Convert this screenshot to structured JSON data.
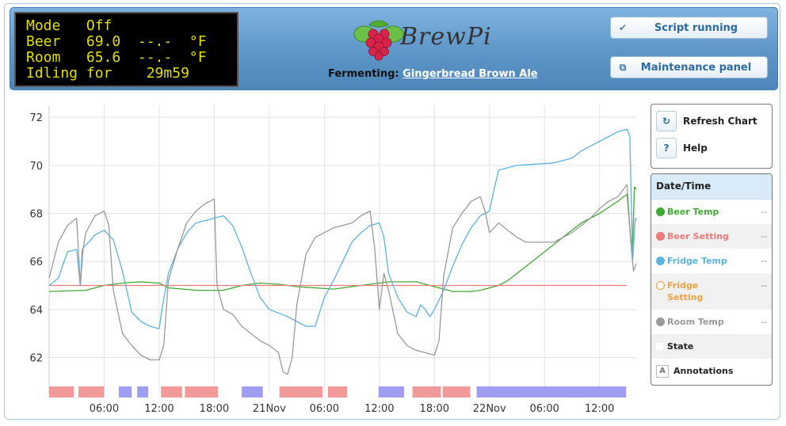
{
  "lcd": {
    "lines": [
      "Mode   Off",
      "Beer   69.0  --.-  °F",
      "Room   65.6  --.-  °F",
      "Idling for    29m59"
    ]
  },
  "brand": {
    "name": "BrewPi"
  },
  "fermenting": {
    "label": "Fermenting:",
    "beer_name": "Gingerbread Brown Ale"
  },
  "buttons": {
    "script": "Script running",
    "maintenance": "Maintenance panel"
  },
  "controls": {
    "refresh": "Refresh Chart",
    "help": "Help",
    "help_icon": "?"
  },
  "legend": {
    "header": "Date/Time",
    "items": [
      {
        "label": "Beer Temp",
        "value": "--",
        "color": "#41a833"
      },
      {
        "label": "Beer Setting",
        "value": "--",
        "color": "#f07a7a"
      },
      {
        "label": "Fridge Temp",
        "value": "--",
        "color": "#5cb3e0"
      },
      {
        "label": "Fridge Setting",
        "value": "--",
        "color": "#f0a040"
      },
      {
        "label": "Room Temp",
        "value": "--",
        "color": "#999999"
      },
      {
        "label": "State",
        "value": "",
        "color": "#ffffff"
      },
      {
        "label": "Annotations",
        "value": "",
        "color": "#ffffff"
      }
    ]
  },
  "chart_data": {
    "type": "line",
    "y_ticks": [
      "72",
      "70",
      "68",
      "66",
      "64",
      "62"
    ],
    "y_range": [
      60.5,
      72.5
    ],
    "x_ticks": [
      "06:00",
      "12:00",
      "18:00",
      "21Nov",
      "06:00",
      "12:00",
      "18:00",
      "22Nov",
      "06:00",
      "12:00"
    ],
    "x_range_hours": [
      0,
      64
    ],
    "grid": true,
    "series": [
      {
        "name": "Beer Temp",
        "color": "#41a833",
        "points": [
          [
            0,
            64.75
          ],
          [
            4,
            64.8
          ],
          [
            6,
            65.0
          ],
          [
            8,
            65.1
          ],
          [
            10,
            65.15
          ],
          [
            12,
            65.1
          ],
          [
            13,
            64.9
          ],
          [
            16,
            64.8
          ],
          [
            19,
            64.8
          ],
          [
            21,
            65.0
          ],
          [
            23,
            65.1
          ],
          [
            25,
            65.05
          ],
          [
            27,
            64.95
          ],
          [
            29,
            64.9
          ],
          [
            31,
            64.85
          ],
          [
            33,
            64.95
          ],
          [
            35,
            65.05
          ],
          [
            37,
            65.15
          ],
          [
            40,
            65.15
          ],
          [
            42,
            64.95
          ],
          [
            44,
            64.75
          ],
          [
            46,
            64.75
          ],
          [
            47,
            64.8
          ],
          [
            49,
            65.0
          ],
          [
            50,
            65.2
          ],
          [
            51,
            65.5
          ],
          [
            52,
            65.8
          ],
          [
            54,
            66.4
          ],
          [
            56,
            67.0
          ],
          [
            58,
            67.6
          ],
          [
            60,
            68.0
          ],
          [
            62,
            68.5
          ],
          [
            63,
            68.8
          ],
          [
            63.1,
            68.3
          ],
          [
            63.4,
            66.9
          ],
          [
            63.6,
            66.6
          ],
          [
            63.8,
            69.1
          ],
          [
            64,
            69.0
          ]
        ]
      },
      {
        "name": "Beer Setting",
        "color": "#f07a7a",
        "points": [
          [
            0,
            65.0
          ],
          [
            63,
            65.0
          ]
        ]
      },
      {
        "name": "Fridge Temp",
        "color": "#5cb3e0",
        "points": [
          [
            0,
            65.0
          ],
          [
            1,
            65.3
          ],
          [
            2,
            66.4
          ],
          [
            3,
            66.5
          ],
          [
            3.4,
            65.0
          ],
          [
            3.6,
            66.5
          ],
          [
            5,
            67.1
          ],
          [
            6,
            67.3
          ],
          [
            7,
            66.9
          ],
          [
            8,
            65.6
          ],
          [
            9,
            63.9
          ],
          [
            10,
            63.5
          ],
          [
            11,
            63.3
          ],
          [
            12,
            63.2
          ],
          [
            12.3,
            64.0
          ],
          [
            13,
            65.5
          ],
          [
            14,
            66.5
          ],
          [
            15,
            67.2
          ],
          [
            16,
            67.6
          ],
          [
            17,
            67.7
          ],
          [
            19,
            67.9
          ],
          [
            20,
            67.5
          ],
          [
            21,
            66.6
          ],
          [
            22,
            65.5
          ],
          [
            23,
            64.5
          ],
          [
            24,
            64.0
          ],
          [
            26,
            63.7
          ],
          [
            27,
            63.5
          ],
          [
            28,
            63.3
          ],
          [
            29,
            63.3
          ],
          [
            30,
            64.5
          ],
          [
            31,
            65.2
          ],
          [
            32,
            66.0
          ],
          [
            33,
            66.8
          ],
          [
            34,
            67.2
          ],
          [
            35,
            67.5
          ],
          [
            36,
            67.6
          ],
          [
            36.5,
            67.0
          ],
          [
            37,
            65.5
          ],
          [
            38,
            64.5
          ],
          [
            39,
            63.9
          ],
          [
            40,
            63.7
          ],
          [
            40.5,
            64.2
          ],
          [
            41,
            64.0
          ],
          [
            41.5,
            63.7
          ],
          [
            42,
            64.0
          ],
          [
            43,
            64.8
          ],
          [
            44,
            65.8
          ],
          [
            45,
            66.7
          ],
          [
            46,
            67.4
          ],
          [
            47,
            67.9
          ],
          [
            48,
            68.1
          ],
          [
            48.5,
            69.0
          ],
          [
            49,
            69.8
          ],
          [
            51,
            70.0
          ],
          [
            55,
            70.1
          ],
          [
            57,
            70.3
          ],
          [
            58,
            70.6
          ],
          [
            60,
            71.0
          ],
          [
            62,
            71.4
          ],
          [
            63,
            71.5
          ],
          [
            63.3,
            71.2
          ],
          [
            63.6,
            66.0
          ],
          [
            63.9,
            67.8
          ],
          [
            64,
            67.7
          ]
        ]
      },
      {
        "name": "Room Temp",
        "color": "#999999",
        "points": [
          [
            0,
            65.3
          ],
          [
            1,
            66.8
          ],
          [
            2,
            67.5
          ],
          [
            3,
            67.8
          ],
          [
            3.4,
            65.0
          ],
          [
            3.7,
            66.5
          ],
          [
            4,
            67.2
          ],
          [
            5,
            67.9
          ],
          [
            6,
            68.1
          ],
          [
            6.5,
            67.5
          ],
          [
            7,
            64.8
          ],
          [
            8,
            63.0
          ],
          [
            9,
            62.5
          ],
          [
            10,
            62.1
          ],
          [
            11,
            61.9
          ],
          [
            12,
            61.9
          ],
          [
            12.5,
            62.5
          ],
          [
            13,
            65.2
          ],
          [
            14,
            66.5
          ],
          [
            15,
            67.6
          ],
          [
            16,
            68.1
          ],
          [
            17,
            68.4
          ],
          [
            18,
            68.6
          ],
          [
            18.3,
            65.0
          ],
          [
            19,
            64.0
          ],
          [
            20,
            63.8
          ],
          [
            21,
            63.3
          ],
          [
            22,
            63.0
          ],
          [
            23,
            62.7
          ],
          [
            24,
            62.5
          ],
          [
            25,
            62.2
          ],
          [
            25.5,
            61.4
          ],
          [
            26,
            61.3
          ],
          [
            26.5,
            62.0
          ],
          [
            27,
            64.2
          ],
          [
            28,
            66.3
          ],
          [
            29,
            67.0
          ],
          [
            30,
            67.2
          ],
          [
            31,
            67.4
          ],
          [
            32,
            67.5
          ],
          [
            33,
            67.6
          ],
          [
            34,
            67.9
          ],
          [
            35,
            68.1
          ],
          [
            35.5,
            66.5
          ],
          [
            36,
            64.0
          ],
          [
            36.5,
            65.5
          ],
          [
            37,
            64.8
          ],
          [
            38,
            63.0
          ],
          [
            39,
            62.5
          ],
          [
            40,
            62.3
          ],
          [
            41,
            62.2
          ],
          [
            42,
            62.1
          ],
          [
            42.5,
            62.7
          ],
          [
            43,
            65.4
          ],
          [
            44,
            67.4
          ],
          [
            45,
            68.0
          ],
          [
            46,
            68.5
          ],
          [
            47,
            68.7
          ],
          [
            47.5,
            68.1
          ],
          [
            48,
            67.2
          ],
          [
            49,
            67.6
          ],
          [
            50,
            67.3
          ],
          [
            51,
            67.0
          ],
          [
            52,
            66.8
          ],
          [
            53,
            66.8
          ],
          [
            55,
            66.8
          ],
          [
            57,
            67.2
          ],
          [
            58,
            67.5
          ],
          [
            59,
            67.8
          ],
          [
            60,
            68.2
          ],
          [
            61,
            68.5
          ],
          [
            62,
            68.7
          ],
          [
            63,
            69.2
          ],
          [
            63.4,
            66.8
          ],
          [
            63.7,
            65.6
          ],
          [
            64,
            65.9
          ]
        ]
      }
    ],
    "state_bands": [
      {
        "from": 0.0,
        "to": 2.7,
        "state": "heating",
        "color": "#f29a9a"
      },
      {
        "from": 3.2,
        "to": 6.0,
        "state": "heating",
        "color": "#f29a9a"
      },
      {
        "from": 7.6,
        "to": 9.0,
        "state": "cooling",
        "color": "#9f9ef0"
      },
      {
        "from": 9.6,
        "to": 10.8,
        "state": "cooling",
        "color": "#9f9ef0"
      },
      {
        "from": 12.2,
        "to": 14.5,
        "state": "heating",
        "color": "#f29a9a"
      },
      {
        "from": 14.8,
        "to": 18.4,
        "state": "heating",
        "color": "#f29a9a"
      },
      {
        "from": 21.0,
        "to": 23.3,
        "state": "cooling",
        "color": "#9f9ef0"
      },
      {
        "from": 25.1,
        "to": 29.8,
        "state": "heating",
        "color": "#f29a9a"
      },
      {
        "from": 30.4,
        "to": 32.5,
        "state": "heating",
        "color": "#f29a9a"
      },
      {
        "from": 35.9,
        "to": 38.7,
        "state": "cooling",
        "color": "#9f9ef0"
      },
      {
        "from": 39.6,
        "to": 42.7,
        "state": "heating",
        "color": "#f29a9a"
      },
      {
        "from": 42.9,
        "to": 45.9,
        "state": "heating",
        "color": "#f29a9a"
      },
      {
        "from": 46.6,
        "to": 62.9,
        "state": "cooling",
        "color": "#9f9ef0"
      }
    ]
  }
}
